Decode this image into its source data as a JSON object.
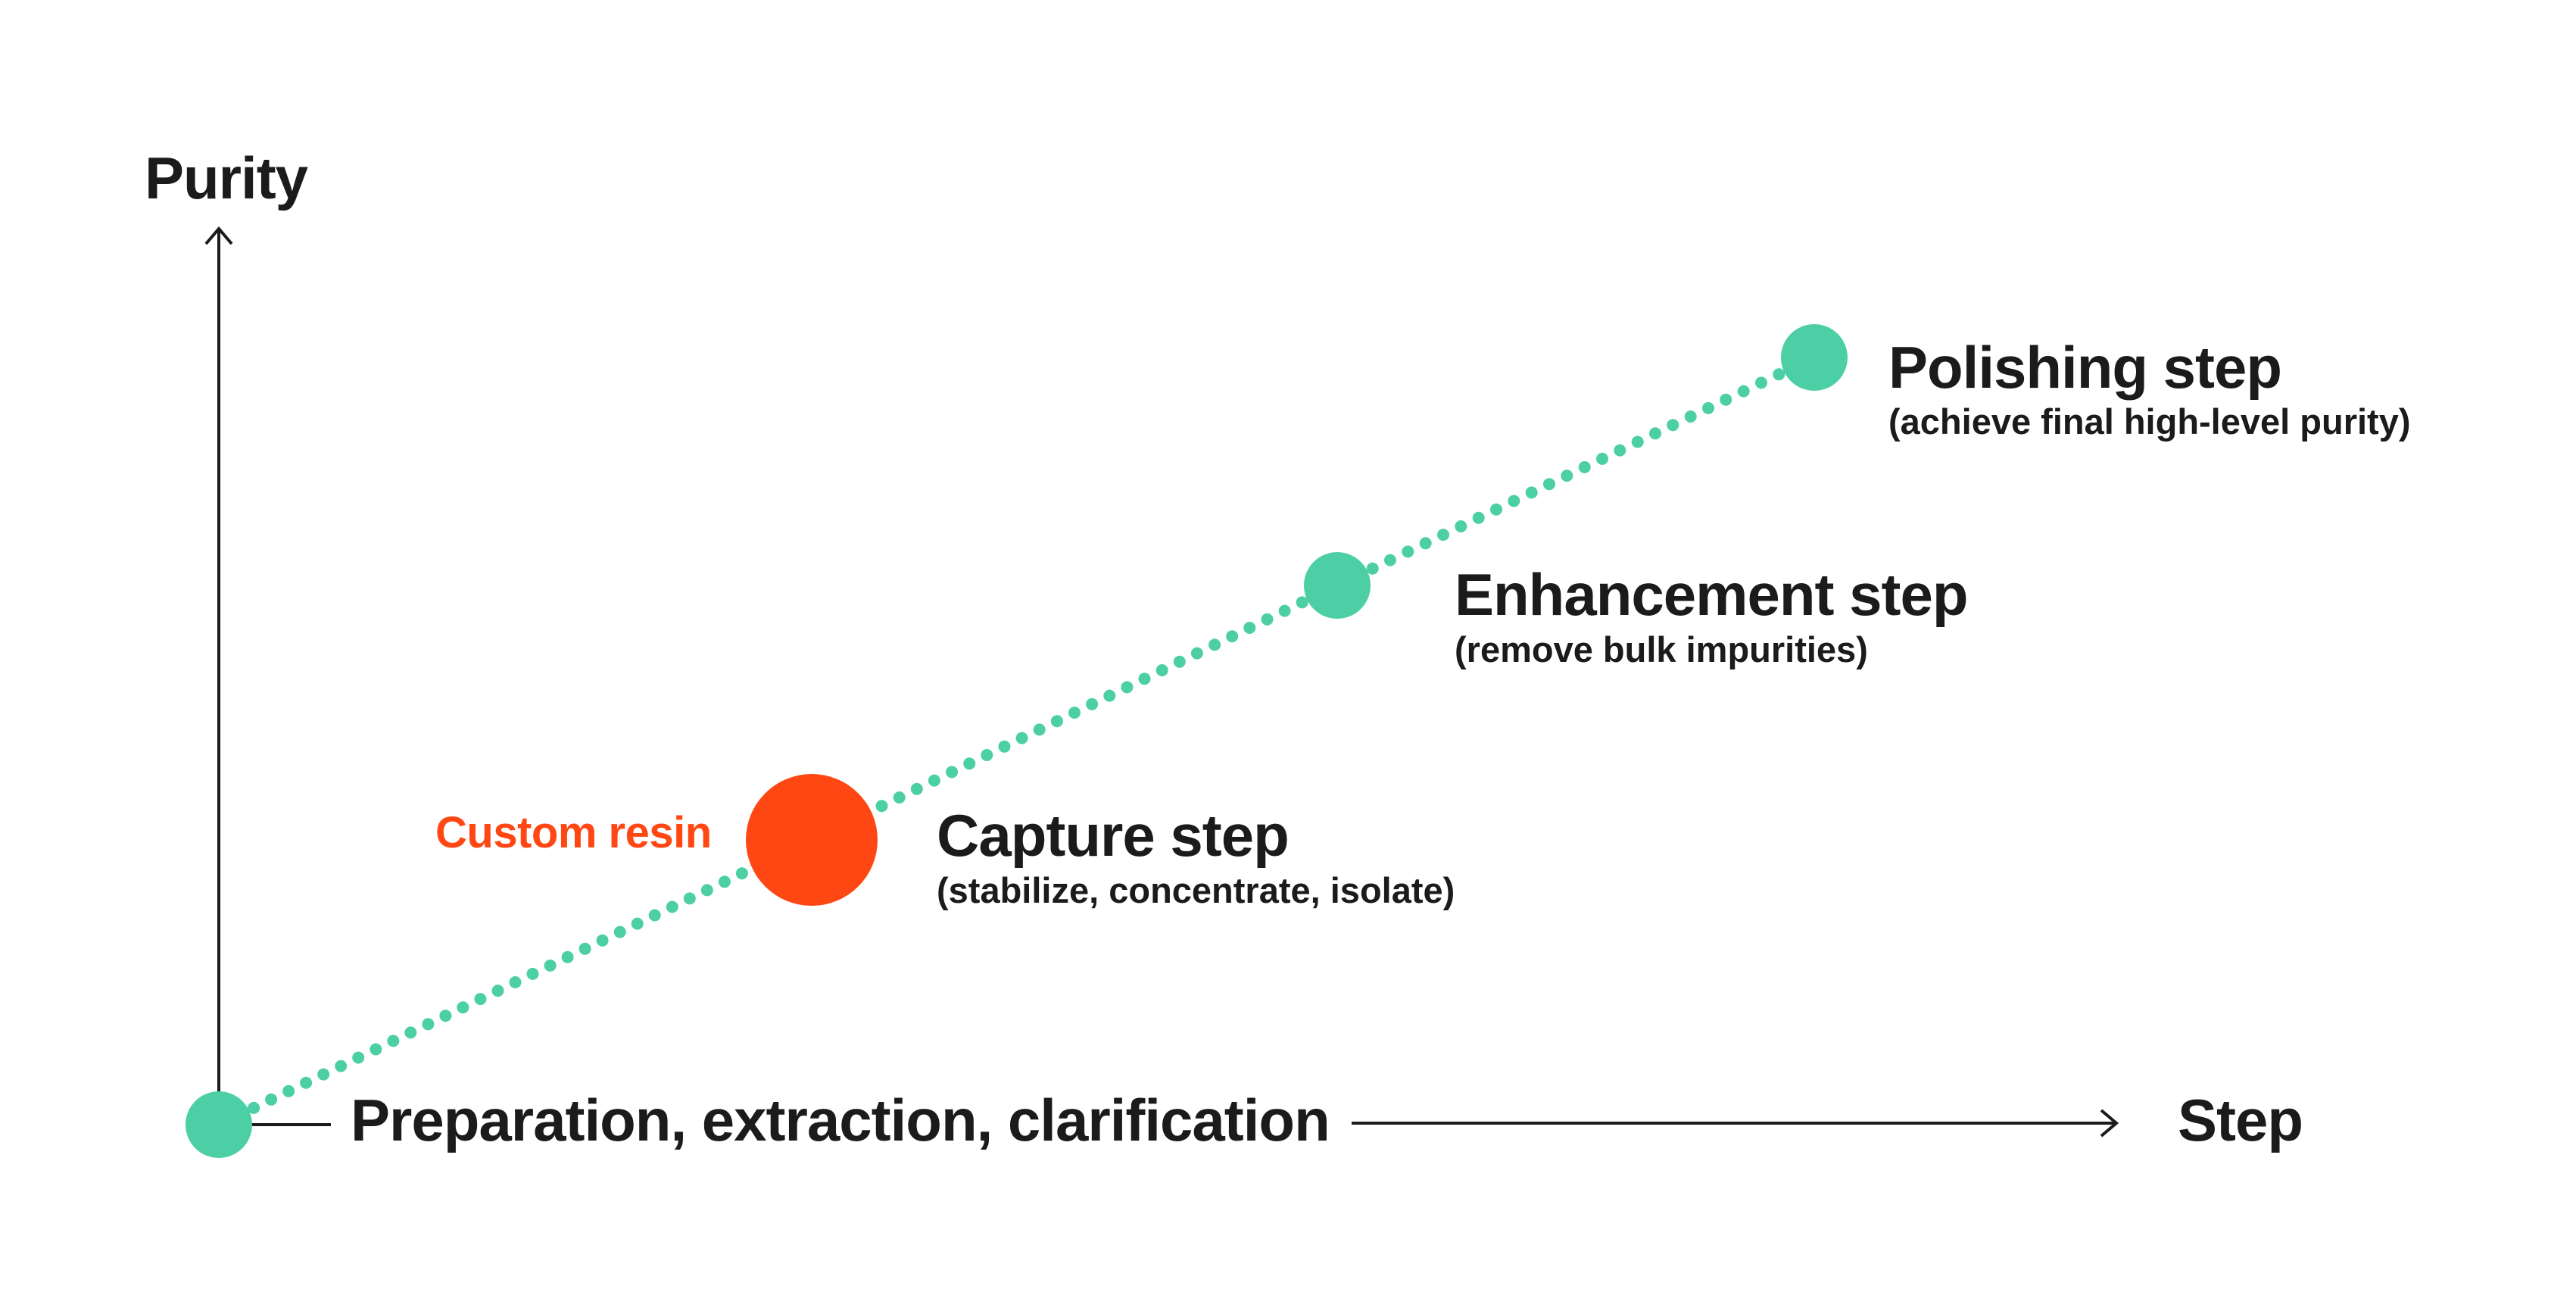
{
  "axes": {
    "y_label": "Purity",
    "x_label": "Step"
  },
  "steps": [
    {
      "title": "Preparation, extraction, clarification",
      "subtitle": ""
    },
    {
      "title": "Capture step",
      "subtitle": "(stabilize, concentrate, isolate)"
    },
    {
      "title": "Enhancement step",
      "subtitle": "(remove bulk impurities)"
    },
    {
      "title": "Polishing step",
      "subtitle": "(achieve final high-level purity)"
    }
  ],
  "highlight": {
    "label": "Custom resin"
  },
  "colors": {
    "node": "#4dcfa5",
    "highlight": "#ff4713",
    "text": "#1b1b1b",
    "axis": "#1b1b1b"
  }
}
